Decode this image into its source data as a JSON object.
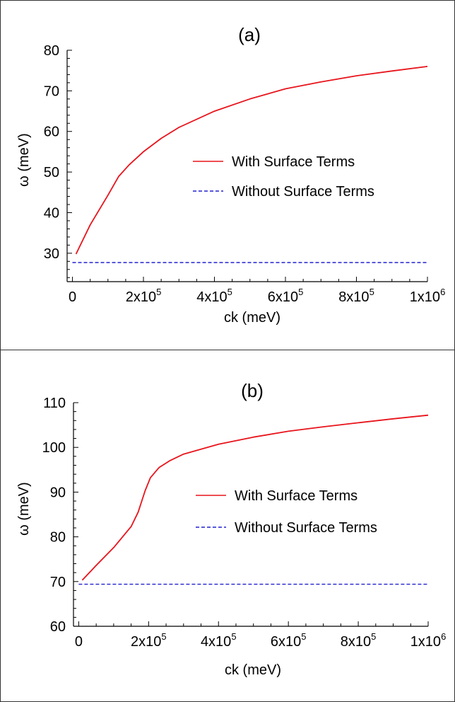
{
  "colors": {
    "with_surface": "#e8141c",
    "without_surface": "#2020d0",
    "axis": "#000000",
    "frame": "#333333"
  },
  "chart_data": [
    {
      "type": "line",
      "panel_label": "(a)",
      "xlabel": "ck (meV)",
      "ylabel": "ω (meV)",
      "xlim": [
        -15000,
        1000000
      ],
      "ylim": [
        23,
        80
      ],
      "xticks": [
        {
          "value": 0,
          "mant": "0",
          "exp": ""
        },
        {
          "value": 200000,
          "mant": "2x10",
          "exp": "5"
        },
        {
          "value": 400000,
          "mant": "4x10",
          "exp": "5"
        },
        {
          "value": 600000,
          "mant": "6x10",
          "exp": "5"
        },
        {
          "value": 800000,
          "mant": "8x10",
          "exp": "5"
        },
        {
          "value": 1000000,
          "mant": "1x10",
          "exp": "6"
        }
      ],
      "yticks": [
        30,
        40,
        50,
        60,
        70,
        80
      ],
      "legend": {
        "position": "center-right",
        "with_label": "With Surface Terms",
        "without_label": "Without Surface Terms"
      },
      "series": [
        {
          "name": "With Surface Terms",
          "style": "solid",
          "x": [
            10000,
            50000,
            100000,
            130000,
            160000,
            200000,
            250000,
            300000,
            400000,
            500000,
            600000,
            700000,
            800000,
            900000,
            1000000
          ],
          "y": [
            29.8,
            37.0,
            44.3,
            48.9,
            51.8,
            55.0,
            58.3,
            61.0,
            65.0,
            68.0,
            70.5,
            72.2,
            73.7,
            74.9,
            76.0
          ]
        },
        {
          "name": "Without Surface Terms",
          "style": "dashed",
          "x": [
            0,
            1000000
          ],
          "y": [
            27.7,
            27.7
          ]
        }
      ]
    },
    {
      "type": "line",
      "panel_label": "(b)",
      "xlabel": "ck (meV)",
      "ylabel": "ω (meV)",
      "xlim": [
        -15000,
        1000000
      ],
      "ylim": [
        60,
        110
      ],
      "xticks": [
        {
          "value": 0,
          "mant": "0",
          "exp": ""
        },
        {
          "value": 200000,
          "mant": "2x10",
          "exp": "5"
        },
        {
          "value": 400000,
          "mant": "4x10",
          "exp": "5"
        },
        {
          "value": 600000,
          "mant": "6x10",
          "exp": "5"
        },
        {
          "value": 800000,
          "mant": "8x10",
          "exp": "5"
        },
        {
          "value": 1000000,
          "mant": "1x10",
          "exp": "6"
        }
      ],
      "yticks": [
        60,
        70,
        80,
        90,
        100,
        110
      ],
      "legend": {
        "position": "center-right",
        "with_label": "With Surface Terms",
        "without_label": "Without Surface Terms"
      },
      "series": [
        {
          "name": "With Surface Terms",
          "style": "solid",
          "x": [
            10000,
            50000,
            100000,
            150000,
            170000,
            190000,
            205000,
            230000,
            260000,
            300000,
            400000,
            500000,
            600000,
            700000,
            800000,
            900000,
            1000000
          ],
          "y": [
            70.3,
            73.6,
            77.6,
            82.3,
            85.5,
            90.3,
            93.2,
            95.5,
            97.0,
            98.5,
            100.7,
            102.3,
            103.6,
            104.6,
            105.5,
            106.4,
            107.2
          ]
        },
        {
          "name": "Without Surface Terms",
          "style": "dashed",
          "x": [
            0,
            1000000
          ],
          "y": [
            69.4,
            69.4
          ]
        }
      ]
    }
  ]
}
